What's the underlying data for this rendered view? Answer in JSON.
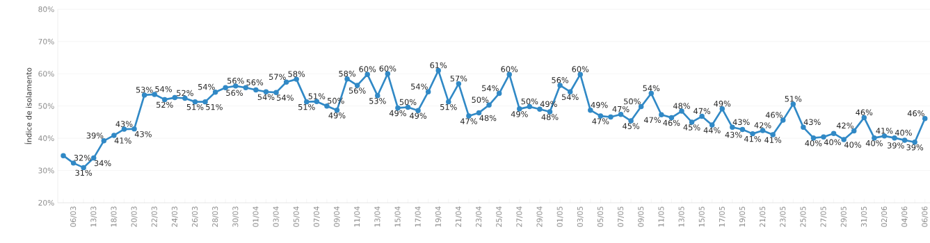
{
  "chart_data": {
    "type": "line",
    "ylabel": "Índice de isolamento",
    "categories": [
      null,
      "06/03",
      null,
      "13/03",
      null,
      "18/03",
      null,
      "20/03",
      null,
      "22/03",
      null,
      "24/03",
      null,
      "26/03",
      null,
      "28/03",
      null,
      "30/03",
      null,
      "01/04",
      null,
      "03/04",
      null,
      "05/04",
      null,
      "07/04",
      null,
      "09/04",
      null,
      "11/04",
      null,
      "13/04",
      null,
      "15/04",
      null,
      "17/04",
      null,
      "19/04",
      null,
      "21/04",
      null,
      "23/04",
      null,
      "25/04",
      null,
      "27/04",
      null,
      "29/04",
      null,
      "01/05",
      null,
      "03/05",
      null,
      "05/05",
      null,
      "07/05",
      null,
      "09/05",
      null,
      "11/05",
      null,
      "13/05",
      null,
      "15/05",
      null,
      "17/05",
      null,
      "19/05",
      null,
      "21/05",
      null,
      "23/05",
      null,
      "25/05",
      null,
      "27/05",
      null,
      "29/05",
      null,
      "31/05",
      null,
      "02/06",
      null,
      "04/06",
      null,
      "06/06"
    ],
    "values": [
      34.6,
      32.3,
      30.9,
      33.9,
      39.2,
      40.9,
      42.8,
      42.9,
      53.4,
      53.6,
      52.0,
      52.6,
      52.4,
      51.3,
      51.3,
      54.3,
      55.7,
      56.2,
      55.7,
      55.0,
      54.4,
      54.2,
      57.4,
      58.3,
      51.3,
      51.4,
      50.0,
      48.7,
      58.4,
      56.4,
      59.8,
      53.2,
      60.0,
      49.4,
      49.6,
      48.6,
      54.4,
      61.0,
      51.3,
      56.9,
      46.9,
      47.9,
      50.3,
      53.9,
      59.8,
      49.1,
      49.8,
      49.0,
      48.2,
      56.4,
      54.4,
      59.8,
      48.7,
      46.9,
      46.6,
      47.4,
      45.4,
      49.8,
      53.9,
      47.3,
      46.4,
      48.4,
      45.0,
      46.8,
      44.1,
      49.1,
      43.4,
      42.7,
      41.4,
      42.4,
      41.1,
      45.6,
      50.6,
      43.4,
      40.1,
      40.4,
      41.5,
      39.6,
      42.3,
      46.4,
      40.1,
      40.7,
      40.1,
      39.4,
      38.8,
      46.1
    ],
    "value_labels": [
      null,
      "32%",
      "31%",
      "34%",
      "39%",
      "41%",
      "43%",
      "43%",
      "53%",
      "54%",
      "52%",
      null,
      "52%",
      "51%",
      "51%",
      "54%",
      "56%",
      "56%",
      "56%",
      null,
      "54%",
      "54%",
      "57%",
      "58%",
      "51%",
      "51%",
      "50%",
      "49%",
      "58%",
      "56%",
      "60%",
      "53%",
      "60%",
      "49%",
      "50%",
      "49%",
      "54%",
      "61%",
      "51%",
      "57%",
      "47%",
      "48%",
      "50%",
      "54%",
      "60%",
      "49%",
      "50%",
      "49%",
      "48%",
      "56%",
      "54%",
      "60%",
      "49%",
      "47%",
      null,
      "47%",
      "45%",
      "50%",
      "54%",
      "47%",
      "46%",
      "48%",
      "45%",
      "47%",
      "44%",
      "49%",
      "43%",
      "43%",
      "41%",
      "42%",
      "41%",
      "46%",
      "51%",
      "43%",
      "40%",
      "40%",
      null,
      "40%",
      "42%",
      "46%",
      "40%",
      "41%",
      "40%",
      "39%",
      "39%",
      "46%"
    ],
    "color": "#3189c6",
    "ylim": [
      20,
      80
    ],
    "yticks": [
      {
        "value": 20,
        "label": "20%"
      },
      {
        "value": 30,
        "label": "30%"
      },
      {
        "value": 40,
        "label": "40%"
      },
      {
        "value": 50,
        "label": "50%"
      },
      {
        "value": 60,
        "label": "60%"
      },
      {
        "value": 70,
        "label": "70%"
      },
      {
        "value": 80,
        "label": "80%"
      }
    ],
    "grid": "y",
    "marker": "circle",
    "line_style": "solid"
  }
}
